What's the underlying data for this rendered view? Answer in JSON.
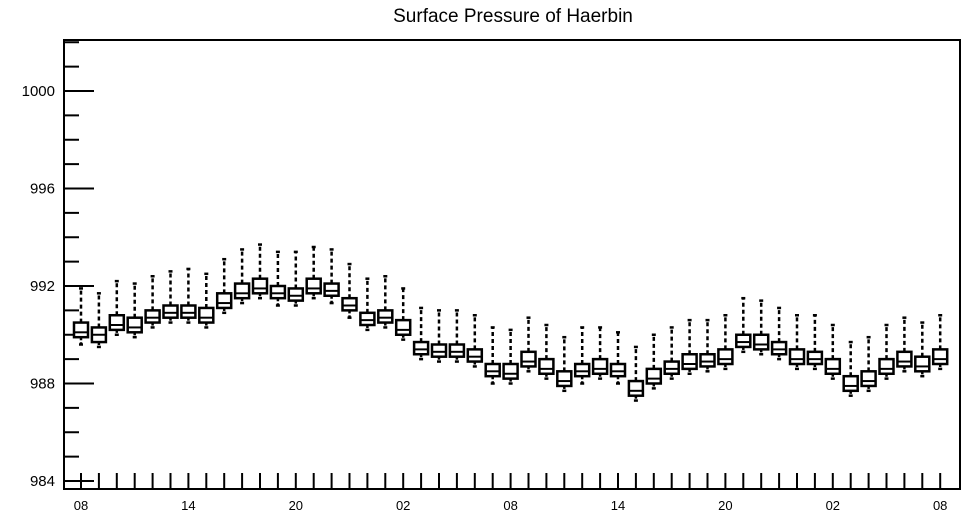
{
  "chart_data": {
    "type": "box",
    "title": "Surface Pressure of Haerbin",
    "xlabel": "",
    "ylabel": "",
    "ylim": [
      984,
      1002
    ],
    "y_ticks": [
      "984",
      "988",
      "992",
      "996",
      "1000"
    ],
    "x_tick_labels": [
      "08",
      "14",
      "20",
      "02",
      "08",
      "14",
      "20",
      "02",
      "08"
    ],
    "x_tick_positions": [
      0,
      6,
      12,
      18,
      24,
      30,
      36,
      42,
      48
    ],
    "grid": false,
    "legend": "none",
    "series": [
      {
        "boxes": [
          {
            "x": 0,
            "whisker_low": 989.6,
            "q1": 989.9,
            "median": 990.1,
            "q3": 990.5,
            "whisker_high": 991.9
          },
          {
            "x": 1,
            "whisker_low": 989.5,
            "q1": 989.7,
            "median": 990.0,
            "q3": 990.3,
            "whisker_high": 991.7
          },
          {
            "x": 2,
            "whisker_low": 990.0,
            "q1": 990.2,
            "median": 990.4,
            "q3": 990.8,
            "whisker_high": 992.2
          },
          {
            "x": 3,
            "whisker_low": 989.9,
            "q1": 990.1,
            "median": 990.3,
            "q3": 990.7,
            "whisker_high": 992.1
          },
          {
            "x": 4,
            "whisker_low": 990.3,
            "q1": 990.5,
            "median": 990.7,
            "q3": 991.0,
            "whisker_high": 992.4
          },
          {
            "x": 5,
            "whisker_low": 990.5,
            "q1": 990.7,
            "median": 990.9,
            "q3": 991.2,
            "whisker_high": 992.6
          },
          {
            "x": 6,
            "whisker_low": 990.5,
            "q1": 990.7,
            "median": 990.9,
            "q3": 991.2,
            "whisker_high": 992.7
          },
          {
            "x": 7,
            "whisker_low": 990.3,
            "q1": 990.5,
            "median": 990.7,
            "q3": 991.1,
            "whisker_high": 992.5
          },
          {
            "x": 8,
            "whisker_low": 990.9,
            "q1": 991.1,
            "median": 991.3,
            "q3": 991.7,
            "whisker_high": 993.1
          },
          {
            "x": 9,
            "whisker_low": 991.3,
            "q1": 991.5,
            "median": 991.7,
            "q3": 992.1,
            "whisker_high": 993.5
          },
          {
            "x": 10,
            "whisker_low": 991.5,
            "q1": 991.7,
            "median": 991.9,
            "q3": 992.3,
            "whisker_high": 993.7
          },
          {
            "x": 11,
            "whisker_low": 991.2,
            "q1": 991.5,
            "median": 991.7,
            "q3": 992.0,
            "whisker_high": 993.4
          },
          {
            "x": 12,
            "whisker_low": 991.2,
            "q1": 991.4,
            "median": 991.6,
            "q3": 991.9,
            "whisker_high": 993.4
          },
          {
            "x": 13,
            "whisker_low": 991.5,
            "q1": 991.7,
            "median": 991.9,
            "q3": 992.3,
            "whisker_high": 993.6
          },
          {
            "x": 14,
            "whisker_low": 991.3,
            "q1": 991.6,
            "median": 991.8,
            "q3": 992.1,
            "whisker_high": 993.5
          },
          {
            "x": 15,
            "whisker_low": 990.7,
            "q1": 991.0,
            "median": 991.2,
            "q3": 991.5,
            "whisker_high": 992.9
          },
          {
            "x": 16,
            "whisker_low": 990.2,
            "q1": 990.4,
            "median": 990.6,
            "q3": 990.9,
            "whisker_high": 992.3
          },
          {
            "x": 17,
            "whisker_low": 990.3,
            "q1": 990.5,
            "median": 990.7,
            "q3": 991.0,
            "whisker_high": 992.4
          },
          {
            "x": 18,
            "whisker_low": 989.8,
            "q1": 990.0,
            "median": 990.2,
            "q3": 990.6,
            "whisker_high": 991.9
          },
          {
            "x": 19,
            "whisker_low": 989.0,
            "q1": 989.2,
            "median": 989.4,
            "q3": 989.7,
            "whisker_high": 991.1
          },
          {
            "x": 20,
            "whisker_low": 988.9,
            "q1": 989.1,
            "median": 989.3,
            "q3": 989.6,
            "whisker_high": 991.0
          },
          {
            "x": 21,
            "whisker_low": 988.9,
            "q1": 989.1,
            "median": 989.3,
            "q3": 989.6,
            "whisker_high": 991.0
          },
          {
            "x": 22,
            "whisker_low": 988.7,
            "q1": 988.9,
            "median": 989.1,
            "q3": 989.4,
            "whisker_high": 990.8
          },
          {
            "x": 23,
            "whisker_low": 988.0,
            "q1": 988.3,
            "median": 988.5,
            "q3": 988.8,
            "whisker_high": 990.3
          },
          {
            "x": 24,
            "whisker_low": 988.0,
            "q1": 988.2,
            "median": 988.4,
            "q3": 988.8,
            "whisker_high": 990.2
          },
          {
            "x": 25,
            "whisker_low": 988.5,
            "q1": 988.7,
            "median": 988.9,
            "q3": 989.3,
            "whisker_high": 990.7
          },
          {
            "x": 26,
            "whisker_low": 988.2,
            "q1": 988.4,
            "median": 988.6,
            "q3": 989.0,
            "whisker_high": 990.4
          },
          {
            "x": 27,
            "whisker_low": 987.7,
            "q1": 987.9,
            "median": 988.1,
            "q3": 988.5,
            "whisker_high": 989.9
          },
          {
            "x": 28,
            "whisker_low": 988.0,
            "q1": 988.3,
            "median": 988.5,
            "q3": 988.8,
            "whisker_high": 990.3
          },
          {
            "x": 29,
            "whisker_low": 988.2,
            "q1": 988.4,
            "median": 988.6,
            "q3": 989.0,
            "whisker_high": 990.3
          },
          {
            "x": 30,
            "whisker_low": 988.0,
            "q1": 988.3,
            "median": 988.5,
            "q3": 988.8,
            "whisker_high": 990.1
          },
          {
            "x": 31,
            "whisker_low": 987.3,
            "q1": 987.5,
            "median": 987.7,
            "q3": 988.1,
            "whisker_high": 989.5
          },
          {
            "x": 32,
            "whisker_low": 987.8,
            "q1": 988.0,
            "median": 988.2,
            "q3": 988.6,
            "whisker_high": 990.0
          },
          {
            "x": 33,
            "whisker_low": 988.2,
            "q1": 988.4,
            "median": 988.6,
            "q3": 988.9,
            "whisker_high": 990.3
          },
          {
            "x": 34,
            "whisker_low": 988.4,
            "q1": 988.6,
            "median": 988.8,
            "q3": 989.2,
            "whisker_high": 990.6
          },
          {
            "x": 35,
            "whisker_low": 988.5,
            "q1": 988.7,
            "median": 988.9,
            "q3": 989.2,
            "whisker_high": 990.6
          },
          {
            "x": 36,
            "whisker_low": 988.6,
            "q1": 988.8,
            "median": 989.0,
            "q3": 989.4,
            "whisker_high": 990.8
          },
          {
            "x": 37,
            "whisker_low": 989.3,
            "q1": 989.5,
            "median": 989.7,
            "q3": 990.0,
            "whisker_high": 991.5
          },
          {
            "x": 38,
            "whisker_low": 989.2,
            "q1": 989.4,
            "median": 989.6,
            "q3": 990.0,
            "whisker_high": 991.4
          },
          {
            "x": 39,
            "whisker_low": 989.0,
            "q1": 989.2,
            "median": 989.4,
            "q3": 989.7,
            "whisker_high": 991.1
          },
          {
            "x": 40,
            "whisker_low": 988.6,
            "q1": 988.8,
            "median": 989.0,
            "q3": 989.4,
            "whisker_high": 990.8
          },
          {
            "x": 41,
            "whisker_low": 988.6,
            "q1": 988.8,
            "median": 989.0,
            "q3": 989.3,
            "whisker_high": 990.8
          },
          {
            "x": 42,
            "whisker_low": 988.2,
            "q1": 988.4,
            "median": 988.6,
            "q3": 989.0,
            "whisker_high": 990.4
          },
          {
            "x": 43,
            "whisker_low": 987.5,
            "q1": 987.7,
            "median": 987.9,
            "q3": 988.3,
            "whisker_high": 989.7
          },
          {
            "x": 44,
            "whisker_low": 987.7,
            "q1": 987.9,
            "median": 988.1,
            "q3": 988.5,
            "whisker_high": 989.9
          },
          {
            "x": 45,
            "whisker_low": 988.2,
            "q1": 988.4,
            "median": 988.6,
            "q3": 989.0,
            "whisker_high": 990.4
          },
          {
            "x": 46,
            "whisker_low": 988.5,
            "q1": 988.7,
            "median": 988.9,
            "q3": 989.3,
            "whisker_high": 990.7
          },
          {
            "x": 47,
            "whisker_low": 988.3,
            "q1": 988.5,
            "median": 988.7,
            "q3": 989.1,
            "whisker_high": 990.5
          },
          {
            "x": 48,
            "whisker_low": 988.6,
            "q1": 988.8,
            "median": 989.0,
            "q3": 989.4,
            "whisker_high": 990.8
          }
        ]
      }
    ]
  }
}
